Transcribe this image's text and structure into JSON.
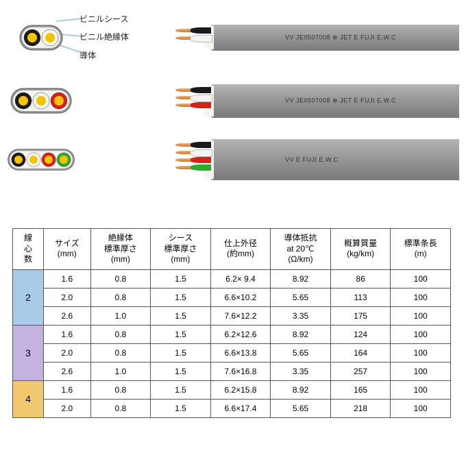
{
  "labels": {
    "sheath": "ビニルシース",
    "insulation": "ビニル絶縁体",
    "conductor": "導体"
  },
  "colors": {
    "sheath": "#9b9b9b",
    "sheath_light": "#b4b4b4",
    "sheath_dark": "#7a7a7a",
    "white": "#f4f4f0",
    "black": "#1a1a1a",
    "yellow": "#f5c400",
    "red": "#d62020",
    "green": "#2fa82f",
    "copper": "#d88c3c"
  },
  "cables": [
    {
      "cores": [
        {
          "ring": "black",
          "fill": "yellow"
        },
        {
          "ring": "white",
          "fill": "yellow"
        }
      ],
      "show_labels": true,
      "wires": [
        "black",
        "white"
      ],
      "mark": "VV  JE0507008  ⊕ JET  <PS> E  FUJI  E.W.C"
    },
    {
      "cores": [
        {
          "ring": "black",
          "fill": "yellow"
        },
        {
          "ring": "white",
          "fill": "yellow"
        },
        {
          "ring": "red",
          "fill": "yellow"
        }
      ],
      "show_labels": false,
      "wires": [
        "black",
        "white",
        "red"
      ],
      "mark": "VV  JE0507008  ⊕ JET  <PS> E  FUJI  E.W.C"
    },
    {
      "cores": [
        {
          "ring": "black",
          "fill": "yellow"
        },
        {
          "ring": "white",
          "fill": "yellow"
        },
        {
          "ring": "red",
          "fill": "yellow"
        },
        {
          "ring": "green",
          "fill": "yellow"
        }
      ],
      "show_labels": false,
      "wires": [
        "black",
        "white",
        "red",
        "green"
      ],
      "mark": "VV  <PS> E  FUJI  E.W.C"
    }
  ],
  "table": {
    "headers": [
      "線\n心\n数",
      "サイズ\n(mm)",
      "絶縁体\n標準厚さ\n(mm)",
      "シース\n標準厚さ\n(mm)",
      "仕上外径\n(約mm)",
      "導体抵抗\nat 20℃\n(Ω/km)",
      "概算質量\n(kg/km)",
      "標準条長\n(m)"
    ],
    "groups": [
      {
        "core": "2",
        "core_bg": "#a8cce8",
        "rows": [
          [
            "1.6",
            "0.8",
            "1.5",
            "6.2×  9.4",
            "8.92",
            "86",
            "100"
          ],
          [
            "2.0",
            "0.8",
            "1.5",
            "6.6×10.2",
            "5.65",
            "113",
            "100"
          ],
          [
            "2.6",
            "1.0",
            "1.5",
            "7.6×12.2",
            "3.35",
            "175",
            "100"
          ]
        ]
      },
      {
        "core": "3",
        "core_bg": "#c4b2e0",
        "rows": [
          [
            "1.6",
            "0.8",
            "1.5",
            "6.2×12.6",
            "8.92",
            "124",
            "100"
          ],
          [
            "2.0",
            "0.8",
            "1.5",
            "6.6×13.8",
            "5.65",
            "164",
            "100"
          ],
          [
            "2.6",
            "1.0",
            "1.5",
            "7.6×16.8",
            "3.35",
            "257",
            "100"
          ]
        ]
      },
      {
        "core": "4",
        "core_bg": "#f0c870",
        "rows": [
          [
            "1.6",
            "0.8",
            "1.5",
            "6.2×15.8",
            "8.92",
            "165",
            "100"
          ],
          [
            "2.0",
            "0.8",
            "1.5",
            "6.6×17.4",
            "5.65",
            "218",
            "100"
          ]
        ]
      }
    ]
  }
}
